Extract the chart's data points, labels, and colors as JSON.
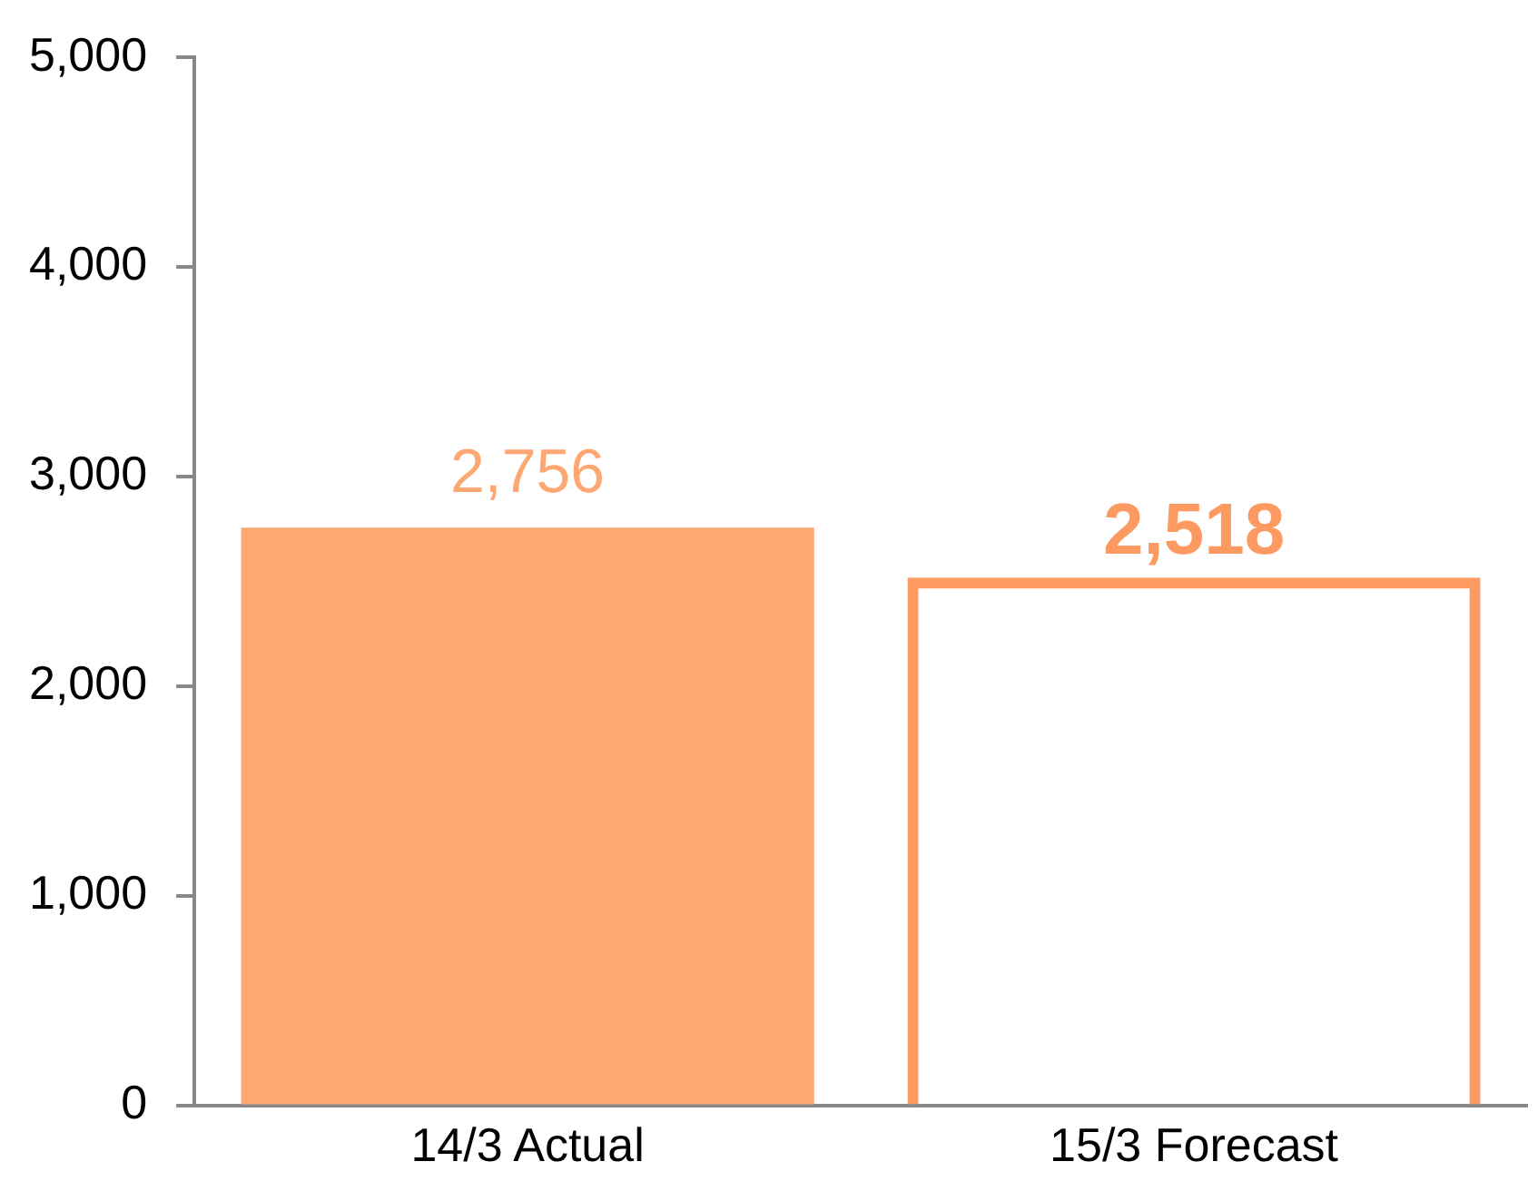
{
  "chart_data": {
    "type": "bar",
    "categories": [
      "14/3 Actual",
      "15/3 Forecast"
    ],
    "values": [
      2756,
      2518
    ],
    "value_labels": [
      "2,756",
      "2,518"
    ],
    "colors": [
      "#fda772",
      "#fd9a62"
    ],
    "ylim": [
      0,
      5000
    ],
    "yticks": [
      {
        "value": 0,
        "label": "0"
      },
      {
        "value": 1000,
        "label": "1,000"
      },
      {
        "value": 2000,
        "label": "2,000"
      },
      {
        "value": 3000,
        "label": "3,000"
      },
      {
        "value": 4000,
        "label": "4,000"
      },
      {
        "value": 5000,
        "label": "5,000"
      }
    ],
    "grid": false,
    "legend": false
  }
}
